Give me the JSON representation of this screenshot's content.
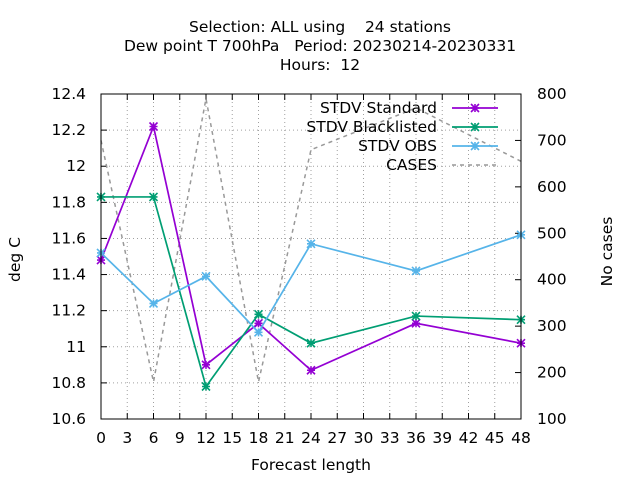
{
  "titles": {
    "line1": "Selection: ALL using    24 stations",
    "line2": "Dew point T 700hPa   Period: 20230214-20230331",
    "line3": "Hours:  12"
  },
  "chart_data": {
    "type": "line",
    "xlabel": "Forecast length",
    "ylabel": "deg C",
    "y2label": "No cases",
    "xlim": [
      0,
      48
    ],
    "ylim": [
      10.6,
      12.4
    ],
    "y2lim": [
      100,
      800
    ],
    "xticks": [
      0,
      3,
      6,
      9,
      12,
      15,
      18,
      21,
      24,
      27,
      30,
      33,
      36,
      39,
      42,
      45,
      48
    ],
    "yticks": [
      10.6,
      10.8,
      11,
      11.2,
      11.4,
      11.6,
      11.8,
      12,
      12.2,
      12.4
    ],
    "y2ticks": [
      100,
      200,
      300,
      400,
      500,
      600,
      700,
      800
    ],
    "grid": true,
    "legend_position": "top-right",
    "series": [
      {
        "name": "STDV Standard",
        "color": "#9400d3",
        "axis": "left",
        "marker": "x-star",
        "x": [
          0,
          6,
          12,
          18,
          24,
          36,
          48
        ],
        "y": [
          11.48,
          12.22,
          10.9,
          11.13,
          10.87,
          11.13,
          11.02
        ]
      },
      {
        "name": "STDV Blacklisted",
        "color": "#009e73",
        "axis": "left",
        "marker": "x-star",
        "x": [
          0,
          6,
          12,
          18,
          24,
          36,
          48
        ],
        "y": [
          11.83,
          11.83,
          10.78,
          11.18,
          11.02,
          11.17,
          11.15
        ]
      },
      {
        "name": "STDV OBS",
        "color": "#56b4e9",
        "axis": "left",
        "marker": "x-star",
        "x": [
          0,
          6,
          12,
          18,
          24,
          36,
          48
        ],
        "y": [
          11.52,
          11.24,
          11.39,
          11.08,
          11.57,
          11.42,
          11.62
        ]
      },
      {
        "name": "CASES",
        "color": "#999999",
        "axis": "right",
        "dashed": true,
        "x": [
          0,
          6,
          12,
          18,
          24,
          36,
          48
        ],
        "y": [
          700,
          180,
          790,
          180,
          680,
          770,
          655
        ]
      }
    ]
  }
}
